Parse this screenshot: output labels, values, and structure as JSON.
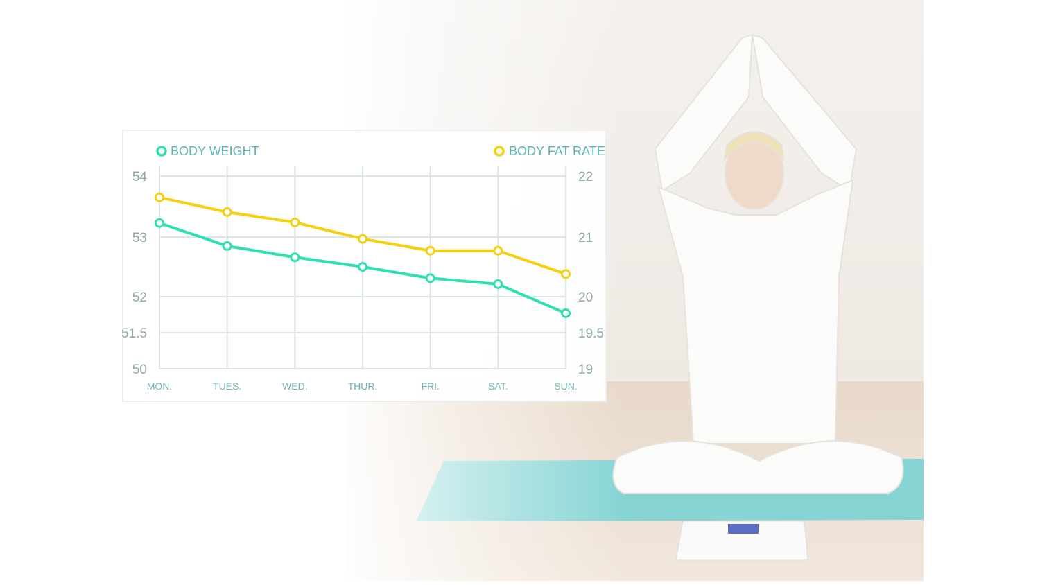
{
  "chart_data": {
    "type": "line",
    "categories": [
      "MON.",
      "TUES.",
      "WED.",
      "THUR.",
      "FRI.",
      "SAT.",
      "SUN."
    ],
    "series": [
      {
        "name": "BODY WEIGHT",
        "axis": "left",
        "color": "#2fe0b0",
        "values": [
          53.23,
          52.85,
          52.66,
          52.5,
          52.31,
          52.21,
          51.77
        ]
      },
      {
        "name": "BODY FAT RATE",
        "axis": "right",
        "color": "#f5d010",
        "values": [
          21.65,
          21.41,
          21.24,
          20.97,
          20.77,
          20.77,
          20.38
        ]
      }
    ],
    "left_axis": {
      "ticks": [
        "54",
        "53",
        "52",
        "51.5",
        "50"
      ],
      "values": [
        54,
        53,
        52,
        51.5,
        50
      ]
    },
    "right_axis": {
      "ticks": [
        "22",
        "21",
        "20",
        "19.5",
        "19"
      ],
      "values": [
        22,
        21,
        20,
        19.5,
        19
      ]
    },
    "grid": true,
    "legend": "top"
  }
}
